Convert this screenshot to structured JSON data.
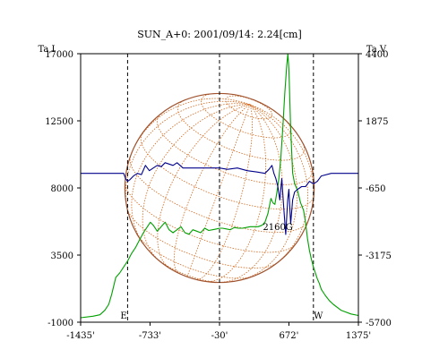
{
  "chart_data": {
    "type": "line",
    "title": "SUN_A+0: 2001/09/14: 2.24[cm]",
    "xlabel": "",
    "ylabel_left": "Ta,I",
    "ylabel_right": "Ta,V",
    "xlim": [
      -1435,
      1375
    ],
    "ylim_left": [
      -1000,
      17000
    ],
    "ylim_right": [
      -5700,
      4400
    ],
    "x_ticks": [
      {
        "value": -1435,
        "label": "-1435'"
      },
      {
        "value": -733,
        "label": "-733'"
      },
      {
        "value": -30,
        "label": "-30'"
      },
      {
        "value": 672,
        "label": "672'"
      },
      {
        "value": 1375,
        "label": "1375'"
      }
    ],
    "y_ticks_left": [
      {
        "value": 17000,
        "label": "17000"
      },
      {
        "value": 12500,
        "label": "12500"
      },
      {
        "value": 8000,
        "label": "8000"
      },
      {
        "value": 3500,
        "label": "3500"
      },
      {
        "value": -1000,
        "label": "-1000"
      }
    ],
    "y_ticks_right": [
      {
        "value": 4400,
        "label": "4400"
      },
      {
        "value": 1875,
        "label": "1875"
      },
      {
        "value": -650,
        "label": "-650"
      },
      {
        "value": -3175,
        "label": "-3175"
      },
      {
        "value": -5700,
        "label": "-5700"
      }
    ],
    "limb_lines": [
      -960,
      -30,
      920
    ],
    "annotations": [
      {
        "text": "E",
        "x": -1000,
        "y": -1000
      },
      {
        "text": "W",
        "x": 970,
        "y": -1000
      },
      {
        "text": "2160G",
        "x": 560,
        "y": 4950
      }
    ],
    "disk": {
      "center_x": -30,
      "radius": 957,
      "center_y": 8000
    },
    "colors": {
      "stokes_i": "#00a000",
      "stokes_v": "#00008b",
      "disk": "#a0522d",
      "grid": "#d2691e",
      "limb": "#000000"
    },
    "series": [
      {
        "axis": "left",
        "x": [
          -1435,
          -1310,
          -1240,
          -1190,
          -1150,
          -1120,
          -1080,
          -1040,
          -1000,
          -960,
          -920,
          -880,
          -840,
          -800,
          -760,
          -730,
          -700,
          -660,
          -620,
          -580,
          -540,
          -500,
          -460,
          -420,
          -380,
          -340,
          -300,
          -260,
          -220,
          -180,
          -140,
          -100,
          -60,
          -30,
          0,
          40,
          80,
          120,
          160,
          200,
          240,
          280,
          320,
          360,
          400,
          430,
          460,
          490,
          510,
          530,
          550,
          570,
          590,
          610,
          630,
          650,
          662,
          672,
          690,
          710,
          730,
          760,
          790,
          820,
          840,
          860,
          880,
          900,
          920,
          940,
          960,
          980,
          1000,
          1040,
          1080,
          1120,
          1200,
          1300,
          1375
        ],
        "y": [
          -700,
          -600,
          -500,
          -200,
          200,
          900,
          2000,
          2300,
          2700,
          3100,
          3600,
          4000,
          4500,
          5000,
          5400,
          5700,
          5500,
          5100,
          5400,
          5700,
          5200,
          5000,
          5200,
          5400,
          5000,
          4900,
          5200,
          5100,
          5000,
          5300,
          5150,
          5200,
          5250,
          5300,
          5300,
          5250,
          5200,
          5350,
          5300,
          5300,
          5350,
          5400,
          5400,
          5400,
          5500,
          5700,
          6300,
          7300,
          7000,
          6900,
          7700,
          8600,
          10000,
          12000,
          14300,
          16200,
          17000,
          16000,
          12000,
          9000,
          8300,
          7800,
          7000,
          6500,
          5700,
          4600,
          3800,
          3200,
          2700,
          2300,
          1900,
          1600,
          1200,
          800,
          450,
          200,
          -200,
          -450,
          -550
        ]
      },
      {
        "axis": "right",
        "x": [
          -1435,
          -1300,
          -1200,
          -1100,
          -1000,
          -980,
          -960,
          -940,
          -900,
          -860,
          -820,
          -780,
          -740,
          -700,
          -660,
          -620,
          -580,
          -540,
          -500,
          -460,
          -400,
          -300,
          -200,
          -100,
          -30,
          50,
          150,
          250,
          350,
          430,
          470,
          500,
          520,
          540,
          560,
          580,
          600,
          620,
          640,
          660,
          672,
          690,
          710,
          730,
          760,
          800,
          840,
          880,
          920,
          960,
          1000,
          1100,
          1200,
          1300,
          1375
        ],
        "y": [
          -100,
          -100,
          -100,
          -100,
          -100,
          -300,
          -400,
          -350,
          -200,
          -100,
          -150,
          200,
          0,
          100,
          200,
          150,
          300,
          250,
          200,
          300,
          100,
          100,
          100,
          100,
          100,
          50,
          100,
          0,
          -50,
          -100,
          50,
          200,
          -100,
          -300,
          -600,
          -1100,
          -300,
          -1400,
          -2400,
          -1100,
          -700,
          -2000,
          -1100,
          -800,
          -700,
          -600,
          -600,
          -400,
          -500,
          -400,
          -200,
          -100,
          -100,
          -100,
          -100
        ]
      }
    ]
  }
}
